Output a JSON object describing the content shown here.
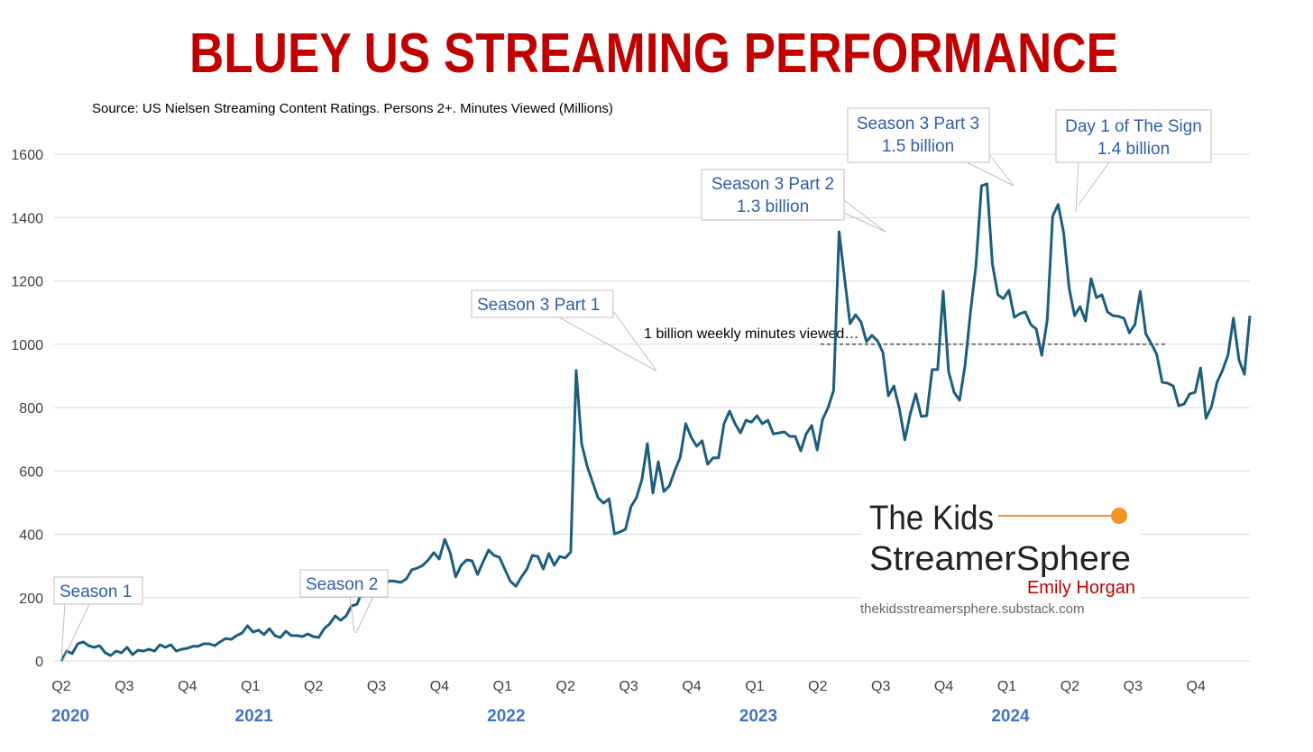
{
  "chart_data": {
    "type": "line",
    "title": "BLUEY US STREAMING PERFORMANCE",
    "subtitle": "Source: US Nielsen Streaming Content Ratings.  Persons 2+.  Minutes Viewed (Millions)",
    "xlabel": "",
    "ylabel": "",
    "ylim": [
      0,
      1600
    ],
    "yticks": [
      "0",
      "200",
      "400",
      "600",
      "800",
      "1000",
      "1200",
      "1400",
      "1600"
    ],
    "ytick_values": [
      0,
      200,
      400,
      600,
      800,
      1000,
      1200,
      1400,
      1600
    ],
    "grid": true,
    "x_quarter_labels": [
      "Q2",
      "Q3",
      "Q4",
      "Q1",
      "Q2",
      "Q3",
      "Q4",
      "Q1",
      "Q2",
      "Q3",
      "Q4",
      "Q1",
      "Q2",
      "Q3",
      "Q4",
      "Q1",
      "Q2",
      "Q3",
      "Q4"
    ],
    "x_year_labels": [
      {
        "label": "2020",
        "quarter_index": 0
      },
      {
        "label": "2021",
        "quarter_index": 3
      },
      {
        "label": "2022",
        "quarter_index": 7
      },
      {
        "label": "2023",
        "quarter_index": 11
      },
      {
        "label": "2024",
        "quarter_index": 15
      }
    ],
    "series": [
      {
        "name": "Bluey weekly minutes viewed (millions)",
        "color": "#1B5E7E",
        "values": [
          0,
          31,
          23,
          54,
          60,
          48,
          43,
          48,
          26,
          17,
          31,
          26,
          43,
          20,
          34,
          31,
          37,
          31,
          51,
          43,
          51,
          31,
          37,
          40,
          46,
          46,
          54,
          54,
          48,
          60,
          71,
          68,
          80,
          88,
          111,
          91,
          97,
          83,
          102,
          80,
          74,
          94,
          80,
          80,
          77,
          85,
          77,
          74,
          102,
          117,
          142,
          128,
          142,
          174,
          179,
          225,
          282,
          253,
          265,
          242,
          253,
          251,
          248,
          259,
          288,
          293,
          302,
          319,
          342,
          322,
          384,
          342,
          265,
          302,
          319,
          316,
          273,
          313,
          350,
          333,
          327,
          288,
          251,
          236,
          265,
          290,
          333,
          330,
          290,
          339,
          302,
          330,
          325,
          344,
          917,
          686,
          615,
          564,
          515,
          498,
          512,
          401,
          407,
          416,
          487,
          515,
          572,
          686,
          530,
          629,
          535,
          552,
          601,
          643,
          749,
          706,
          678,
          695,
          621,
          641,
          641,
          749,
          789,
          749,
          720,
          760,
          754,
          774,
          749,
          760,
          717,
          720,
          723,
          709,
          709,
          663,
          717,
          743,
          666,
          763,
          800,
          854,
          1355,
          1210,
          1065,
          1093,
          1070,
          1008,
          1028,
          1011,
          974,
          837,
          868,
          797,
          698,
          780,
          843,
          772,
          774,
          920,
          920,
          1167,
          914,
          848,
          823,
          934,
          1102,
          1250,
          1500,
          1506,
          1253,
          1156,
          1144,
          1170,
          1085,
          1096,
          1102,
          1062,
          1048,
          965,
          1076,
          1404,
          1441,
          1352,
          1176,
          1090,
          1119,
          1073,
          1207,
          1147,
          1156,
          1102,
          1090,
          1088,
          1082,
          1036,
          1062,
          1167,
          1033,
          1002,
          968,
          880,
          877,
          868,
          806,
          811,
          843,
          848,
          925,
          766,
          803,
          880,
          917,
          965,
          1082,
          951,
          905,
          1090
        ]
      }
    ],
    "reference_line": {
      "value": 1000,
      "label": "1 billion  weekly minutes viewed…"
    },
    "annotations": [
      {
        "lines": [
          "Season 1"
        ]
      },
      {
        "lines": [
          "Season 2"
        ]
      },
      {
        "lines": [
          "Season 3 Part 1"
        ]
      },
      {
        "lines": [
          "Season 3 Part 2",
          "1.3 billion"
        ]
      },
      {
        "lines": [
          "Season 3 Part 3",
          "1.5 billion"
        ]
      },
      {
        "lines": [
          "Day 1 of The Sign",
          "1.4 billion"
        ]
      }
    ]
  },
  "branding": {
    "line1": "The Kids",
    "line2": "StreamerSphere",
    "author": "Emily Horgan",
    "url": "thekidsstreamersphere.substack.com",
    "accent": "#F39325",
    "author_color": "#C00000"
  }
}
